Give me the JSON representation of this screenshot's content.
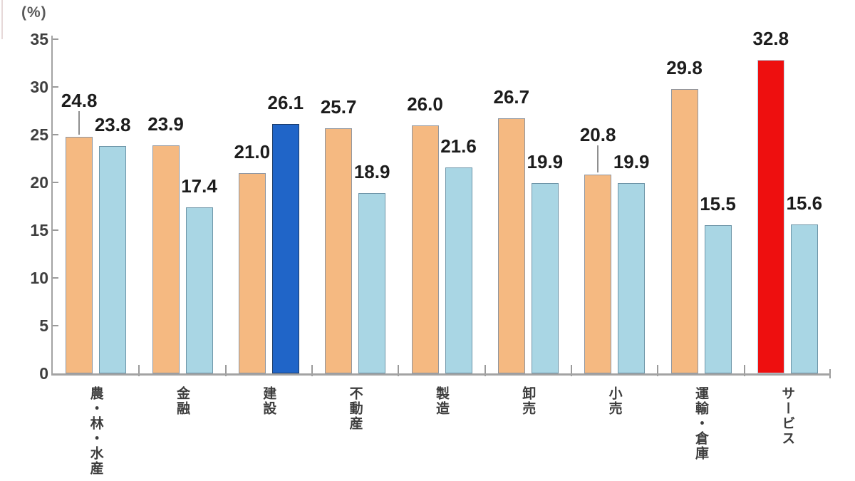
{
  "chart_data": {
    "type": "bar",
    "title": "",
    "y_axis": {
      "unit_label": "(%)",
      "ticks": [
        0,
        5,
        10,
        15,
        20,
        25,
        30,
        35
      ],
      "range": [
        0,
        35
      ]
    },
    "categories": [
      "農・林・水産",
      "金融",
      "建設",
      "不動産",
      "製造",
      "卸売",
      "小売",
      "運輸・倉庫",
      "サービス"
    ],
    "series": [
      {
        "name": "series-a",
        "fill": "#F5B981",
        "border": "#8F96A0",
        "values": [
          24.8,
          23.9,
          21.0,
          25.7,
          26.0,
          26.7,
          20.8,
          29.8,
          32.8
        ]
      },
      {
        "name": "series-b",
        "fill": "#A9D6E4",
        "border": "#6E95A8",
        "values": [
          23.8,
          17.4,
          26.1,
          18.9,
          21.6,
          19.9,
          19.9,
          15.5,
          15.6
        ]
      }
    ],
    "highlight_overrides": [
      {
        "group": 2,
        "series": 1,
        "fill": "#2065C8",
        "border": "#1B3A66"
      },
      {
        "group": 8,
        "series": 0,
        "fill": "#EE0F0F",
        "border": "#B6D5E6"
      }
    ],
    "data_labels": {
      "show": true,
      "decimals": 1
    },
    "leader_lines": [
      {
        "group": 0,
        "series": 0,
        "raise": 38
      },
      {
        "group": 6,
        "series": 0,
        "raise": 43
      }
    ],
    "legend": {
      "show": false
    },
    "grid": {
      "show": false
    },
    "colors": {
      "axis": "#a3a3a3",
      "value_label": "#1c1c1c",
      "tick_label": "#3f3f3f",
      "category_label": "#3d3d3d"
    }
  }
}
